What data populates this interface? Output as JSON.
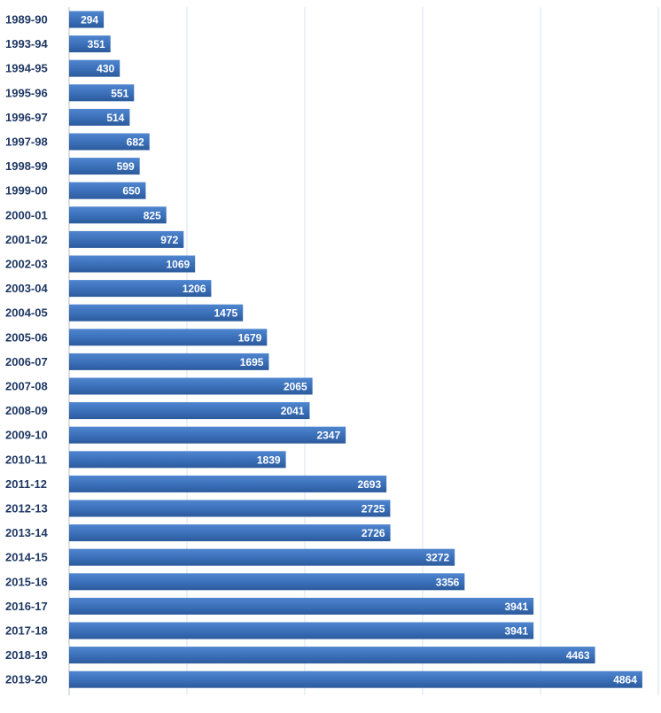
{
  "chart_data": {
    "type": "bar",
    "orientation": "horizontal",
    "categories": [
      "1989-90",
      "1993-94",
      "1994-95",
      "1995-96",
      "1996-97",
      "1997-98",
      "1998-99",
      "1999-00",
      "2000-01",
      "2001-02",
      "2002-03",
      "2003-04",
      "2004-05",
      "2005-06",
      "2006-07",
      "2007-08",
      "2008-09",
      "2009-10",
      "2010-11",
      "2011-12",
      "2012-13",
      "2013-14",
      "2014-15",
      "2015-16",
      "2016-17",
      "2017-18",
      "2018-19",
      "2019-20"
    ],
    "values": [
      294,
      351,
      430,
      551,
      514,
      682,
      599,
      650,
      825,
      972,
      1069,
      1206,
      1475,
      1679,
      1695,
      2065,
      2041,
      2347,
      1839,
      2693,
      2725,
      2726,
      3272,
      3356,
      3941,
      3941,
      4463,
      4864
    ],
    "title": "",
    "xlabel": "",
    "ylabel": "",
    "xlim": [
      0,
      5000
    ],
    "gridlines": [
      1000,
      2000,
      3000,
      4000,
      5000
    ],
    "grid": true,
    "data_labels": true,
    "bar_color": "#3a6fb8",
    "label_color": "#1f3864"
  }
}
